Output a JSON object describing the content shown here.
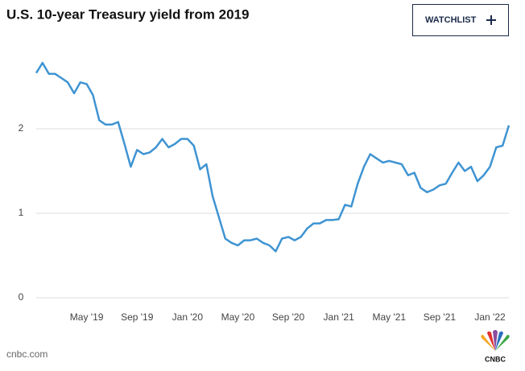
{
  "header": {
    "button": "WATCHLIST"
  },
  "chart_data": {
    "type": "line",
    "title": "U.S. 10-year Treasury yield from 2019",
    "categories": [
      null,
      null,
      null,
      null,
      null,
      null,
      null,
      null,
      "May '19",
      null,
      null,
      null,
      null,
      null,
      null,
      null,
      "Sep '19",
      null,
      null,
      null,
      null,
      null,
      null,
      null,
      "Jan '20",
      null,
      null,
      null,
      null,
      null,
      null,
      null,
      "May '20",
      null,
      null,
      null,
      null,
      null,
      null,
      null,
      "Sep '20",
      null,
      null,
      null,
      null,
      null,
      null,
      null,
      "Jan '21",
      null,
      null,
      null,
      null,
      null,
      null,
      null,
      "May '21",
      null,
      null,
      null,
      null,
      null,
      null,
      null,
      "Sep '21",
      null,
      null,
      null,
      null,
      null,
      null,
      null,
      "Jan '22",
      null,
      null,
      null
    ],
    "series": [
      {
        "color": "#3f94d2",
        "values": [
          2.66,
          2.78,
          2.65,
          2.65,
          2.6,
          2.55,
          2.42,
          2.55,
          2.53,
          2.4,
          2.1,
          2.05,
          2.05,
          2.08,
          1.82,
          1.55,
          1.75,
          1.7,
          1.72,
          1.78,
          1.88,
          1.78,
          1.82,
          1.88,
          1.88,
          1.8,
          1.52,
          1.58,
          1.2,
          0.95,
          0.7,
          0.65,
          0.62,
          0.68,
          0.68,
          0.7,
          0.65,
          0.62,
          0.55,
          0.7,
          0.72,
          0.68,
          0.72,
          0.82,
          0.88,
          0.88,
          0.92,
          0.92,
          0.93,
          1.1,
          1.08,
          1.35,
          1.55,
          1.7,
          1.65,
          1.6,
          1.62,
          1.6,
          1.58,
          1.45,
          1.48,
          1.3,
          1.25,
          1.28,
          1.33,
          1.35,
          1.48,
          1.6,
          1.5,
          1.55,
          1.38,
          1.45,
          1.55,
          1.78,
          1.8,
          2.04
        ]
      }
    ],
    "ylim": [
      0,
      3
    ],
    "yticks": [
      0,
      1,
      2
    ],
    "grid": true
  },
  "footer": {
    "source": "cnbc.com",
    "logo": "CNBC"
  }
}
